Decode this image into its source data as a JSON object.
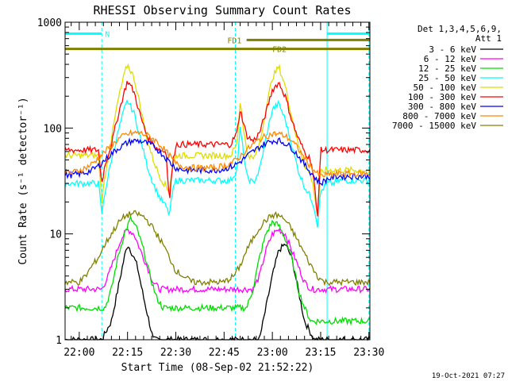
{
  "chart_data": {
    "type": "line",
    "title": "RHESSI Observing Summary Count Rates",
    "xlabel": "Start Time (08-Sep-02 21:52:22)",
    "ylabel": "Count Rate (s⁻¹ detector⁻¹)",
    "x_range_minutes": [
      55.6,
      150.3
    ],
    "ylim": [
      1,
      1000
    ],
    "y_scale": "log",
    "x_ticks": [
      {
        "t": 60,
        "label": "22:00"
      },
      {
        "t": 75,
        "label": "22:15"
      },
      {
        "t": 90,
        "label": "22:30"
      },
      {
        "t": 105,
        "label": "22:45"
      },
      {
        "t": 120,
        "label": "23:00"
      },
      {
        "t": 135,
        "label": "23:15"
      },
      {
        "t": 150,
        "label": "23:30"
      }
    ],
    "y_ticks": [
      {
        "v": 1,
        "label": "1"
      },
      {
        "v": 10,
        "label": "10"
      },
      {
        "v": 100,
        "label": "100"
      },
      {
        "v": 1000,
        "label": "1000"
      }
    ],
    "legend_title": [
      "Det 1,3,4,5,6,9,",
      "Att 1"
    ],
    "legend_placement": "right",
    "series": [
      {
        "name": "3 - 6 keV",
        "color": "#000000",
        "x": [
          55.6,
          67,
          70,
          72,
          74,
          75,
          76,
          78,
          80,
          83,
          85,
          116,
          118,
          120,
          122,
          124,
          126,
          128,
          130,
          133,
          150.3
        ],
        "y": [
          1,
          1,
          1.5,
          3,
          6,
          8,
          7,
          5,
          2.5,
          1,
          1,
          1,
          2,
          4,
          7,
          8,
          6,
          3,
          1.5,
          1,
          1
        ]
      },
      {
        "name": "6 - 12 keV",
        "color": "#ff00ff",
        "x": [
          55.6,
          67,
          69,
          71,
          73,
          75,
          77,
          79,
          81,
          83,
          85,
          88,
          112,
          114,
          116,
          118,
          120,
          122,
          124,
          126,
          128,
          130,
          132,
          134,
          150.3
        ],
        "y": [
          3,
          3,
          4,
          6,
          9,
          11,
          10,
          7,
          5,
          3.5,
          3,
          3,
          3,
          3,
          4,
          7,
          10,
          11,
          10,
          7,
          5,
          3.5,
          3,
          3,
          3
        ]
      },
      {
        "name": "12 - 25 keV",
        "color": "#00dd00",
        "x": [
          55.6,
          68,
          70,
          72,
          74,
          76,
          78,
          80,
          82,
          84,
          86,
          88,
          112,
          114,
          116,
          118,
          120,
          122,
          124,
          126,
          128,
          130,
          132,
          150.3
        ],
        "y": [
          2,
          2,
          3,
          6,
          10,
          14,
          11,
          7,
          4,
          2.5,
          2,
          2,
          2,
          3,
          6,
          10,
          13,
          12,
          9,
          6,
          3,
          2,
          1.5,
          1.5
        ]
      },
      {
        "name": "25 - 50 keV",
        "color": "#00ffff",
        "x": [
          55.6,
          66,
          67,
          68,
          70,
          72,
          74,
          75,
          77,
          79,
          81,
          83,
          85,
          87,
          88,
          89,
          90,
          107,
          109,
          110,
          112,
          114,
          116,
          118,
          120,
          122,
          124,
          126,
          128,
          130,
          132,
          133,
          134,
          135,
          137,
          139,
          141,
          150.3
        ],
        "y": [
          30,
          30,
          15,
          25,
          50,
          90,
          150,
          180,
          140,
          80,
          45,
          30,
          22,
          18,
          15,
          25,
          32,
          32,
          40,
          100,
          35,
          30,
          40,
          80,
          150,
          170,
          120,
          70,
          40,
          28,
          22,
          18,
          12,
          25,
          30,
          30,
          32,
          32
        ]
      },
      {
        "name": "50 - 100 keV",
        "color": "#dddd00",
        "x": [
          55.6,
          66,
          67,
          68,
          70,
          72,
          74,
          75,
          77,
          79,
          81,
          83,
          85,
          87,
          88,
          89,
          90,
          107,
          109,
          110,
          112,
          114,
          116,
          118,
          120,
          122,
          124,
          126,
          128,
          130,
          132,
          133,
          134,
          135,
          137,
          139,
          141,
          150.3
        ],
        "y": [
          55,
          55,
          20,
          35,
          80,
          180,
          320,
          400,
          300,
          160,
          80,
          50,
          35,
          28,
          25,
          45,
          55,
          55,
          70,
          180,
          60,
          50,
          70,
          150,
          300,
          380,
          250,
          130,
          70,
          45,
          35,
          25,
          15,
          38,
          40,
          40,
          40,
          40
        ]
      },
      {
        "name": "100 - 300 keV",
        "color": "#ff0000",
        "x": [
          55.6,
          66,
          67,
          68,
          70,
          72,
          74,
          75,
          77,
          79,
          81,
          83,
          85,
          87,
          88,
          89,
          90,
          107,
          109,
          110,
          112,
          114,
          116,
          118,
          120,
          122,
          124,
          126,
          128,
          130,
          132,
          133,
          134,
          135,
          150.3
        ],
        "y": [
          62,
          62,
          30,
          45,
          70,
          130,
          220,
          280,
          220,
          130,
          85,
          70,
          62,
          60,
          20,
          45,
          70,
          70,
          90,
          150,
          85,
          75,
          90,
          140,
          230,
          270,
          200,
          120,
          80,
          60,
          50,
          30,
          14,
          62,
          62
        ]
      },
      {
        "name": "300 - 800 keV",
        "color": "#0000ff",
        "x": [
          55.6,
          58,
          60,
          62,
          64,
          66,
          68,
          70,
          72,
          74,
          76,
          78,
          80,
          82,
          84,
          86,
          88,
          90,
          93,
          96,
          99,
          102,
          105,
          108,
          110,
          112,
          114,
          116,
          118,
          120,
          122,
          124,
          126,
          128,
          130,
          132,
          134,
          135,
          137,
          140,
          145,
          150.3
        ],
        "y": [
          36,
          36,
          37,
          38,
          40,
          44,
          50,
          57,
          64,
          70,
          75,
          76,
          74,
          70,
          64,
          56,
          48,
          42,
          40,
          40,
          40,
          40,
          41,
          44,
          48,
          54,
          60,
          66,
          72,
          76,
          76,
          72,
          65,
          55,
          45,
          38,
          32,
          30,
          33,
          35,
          35,
          35
        ]
      },
      {
        "name": "800 - 7000 keV",
        "color": "#ff8800",
        "x": [
          55.6,
          58,
          60,
          62,
          64,
          66,
          68,
          70,
          72,
          74,
          76,
          78,
          80,
          82,
          84,
          86,
          88,
          90,
          93,
          96,
          99,
          102,
          105,
          108,
          110,
          112,
          114,
          116,
          118,
          120,
          122,
          124,
          126,
          128,
          130,
          132,
          134,
          135,
          137,
          140,
          145,
          150.3
        ],
        "y": [
          38,
          38,
          40,
          42,
          46,
          52,
          60,
          68,
          78,
          85,
          89,
          90,
          88,
          83,
          75,
          65,
          55,
          46,
          43,
          42,
          42,
          42,
          44,
          48,
          54,
          62,
          70,
          78,
          84,
          88,
          88,
          84,
          76,
          64,
          52,
          43,
          37,
          35,
          36,
          37,
          37,
          37
        ]
      },
      {
        "name": "7000 - 15000 keV",
        "color": "#808000",
        "x": [
          55.6,
          60,
          62,
          64,
          66,
          68,
          70,
          72,
          74,
          76,
          78,
          80,
          82,
          84,
          86,
          88,
          90,
          95,
          100,
          105,
          108,
          110,
          112,
          114,
          116,
          118,
          120,
          122,
          124,
          126,
          128,
          130,
          132,
          134,
          136,
          140,
          145,
          150.3
        ],
        "y": [
          3.5,
          3.5,
          4,
          5,
          6,
          8,
          10,
          12.5,
          14.5,
          15.5,
          15.5,
          14.5,
          12.5,
          10,
          8,
          6,
          4.5,
          3.5,
          3.5,
          3.5,
          4,
          5,
          7,
          9,
          11.5,
          13.5,
          15,
          15,
          13.5,
          11,
          8.5,
          6.5,
          5,
          4,
          3.5,
          3.5,
          3.5,
          3.5
        ]
      }
    ],
    "annotations": [
      {
        "label": "N",
        "color": "#00ffff",
        "segments": [
          [
            55.6,
            67
          ],
          [
            137,
            150.3
          ]
        ],
        "y": 780
      },
      {
        "label": "FD1",
        "color": "#808000",
        "segments": [
          [
            112,
            150.3
          ]
        ],
        "y": 680
      },
      {
        "label": "FD2",
        "color": "#808000",
        "segments": [
          [
            55.6,
            150.3
          ]
        ],
        "y": 560
      }
    ],
    "vertical_markers": [
      {
        "t": 67,
        "color": "#00ffff",
        "style": "dashed"
      },
      {
        "t": 108.5,
        "color": "#00ffff",
        "style": "dashed"
      },
      {
        "t": 137,
        "color": "#00ffff",
        "style": "solid"
      },
      {
        "t": 150,
        "color": "#00ffff",
        "style": "dashed"
      }
    ]
  },
  "footer": {
    "timestamp": "19-Oct-2021 07:27"
  }
}
